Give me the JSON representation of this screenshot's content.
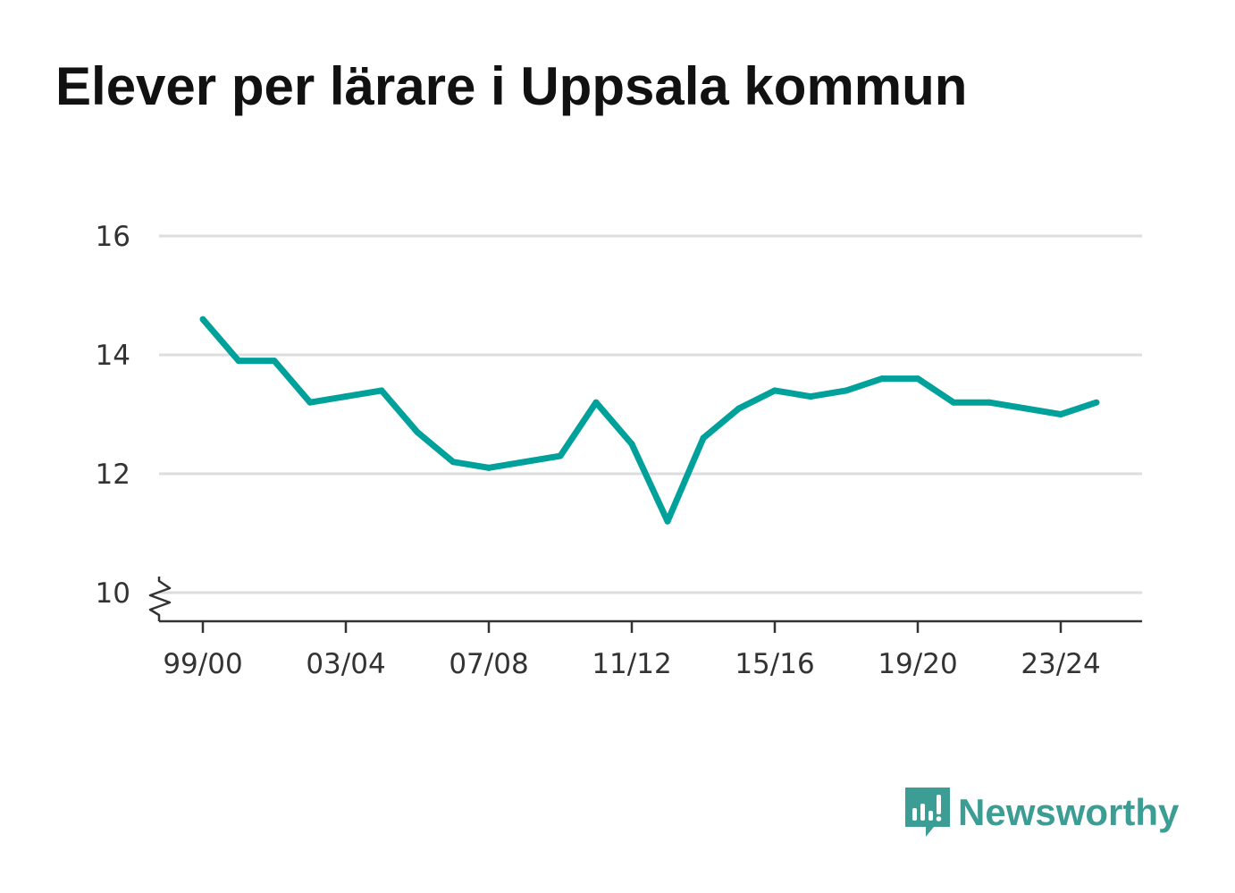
{
  "chart_data": {
    "type": "line",
    "title": "Elever per lärare i Uppsala kommun",
    "xlabel": "",
    "ylabel": "",
    "x": [
      "99/00",
      "00/01",
      "01/02",
      "02/03",
      "03/04",
      "04/05",
      "05/06",
      "06/07",
      "07/08",
      "08/09",
      "09/10",
      "10/11",
      "11/12",
      "12/13",
      "13/14",
      "14/15",
      "15/16",
      "16/17",
      "17/18",
      "18/19",
      "19/20",
      "20/21",
      "21/22",
      "22/23",
      "23/24",
      "24/25"
    ],
    "x_tick_labels": [
      "99/00",
      "03/04",
      "07/08",
      "11/12",
      "15/16",
      "19/20",
      "23/24"
    ],
    "series": [
      {
        "values": [
          14.6,
          13.9,
          13.9,
          13.2,
          13.3,
          13.4,
          12.7,
          12.2,
          12.1,
          12.2,
          12.3,
          13.2,
          12.5,
          11.2,
          12.6,
          13.1,
          13.4,
          13.3,
          13.4,
          13.6,
          13.6,
          13.2,
          13.2,
          13.1,
          13.0,
          13.2
        ]
      }
    ],
    "y_ticks": [
      10,
      12,
      14,
      16
    ],
    "ylim": [
      9.5,
      16
    ],
    "y_axis_break": true,
    "grid": true,
    "legend": "none"
  },
  "colors": {
    "line": "#00a19a",
    "grid": "#dddddd",
    "axis": "#333333",
    "logo": "#3b9d93"
  },
  "brand": {
    "name": "Newsworthy",
    "icon": "newsworthy-chart-icon"
  }
}
